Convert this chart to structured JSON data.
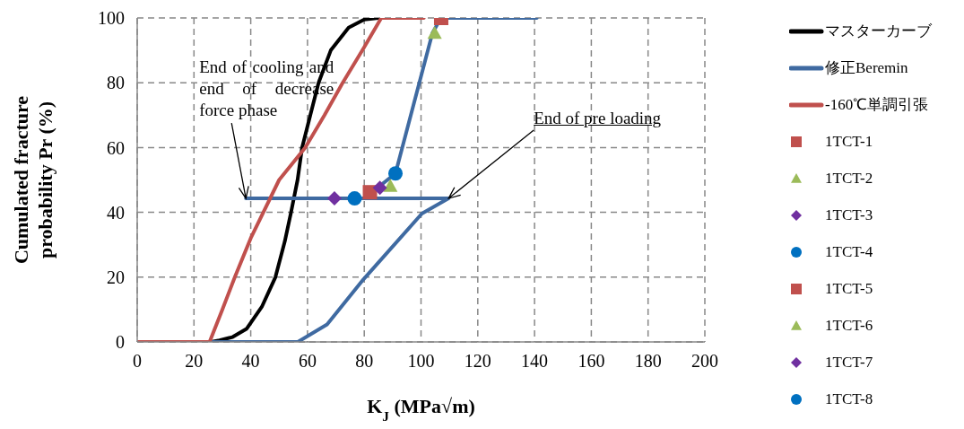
{
  "chart_data": {
    "type": "line",
    "xlabel": "K$_{J}$ (MPa√m)",
    "ylabel": "Cumulated fracture\nprobability Pr (%)",
    "xlim": [
      0,
      200
    ],
    "xticks": [
      0,
      20,
      40,
      60,
      80,
      100,
      120,
      140,
      160,
      180,
      200
    ],
    "ylim": [
      0,
      100
    ],
    "yticks": [
      0,
      20,
      40,
      60,
      80,
      100
    ],
    "grid": true,
    "legend": "right",
    "line_style": "solid",
    "series": [
      {
        "name": "マスターカーブ",
        "type": "line",
        "color": "#000000",
        "marker": "none",
        "x": [
          0,
          26,
          29,
          33.6,
          38.6,
          44,
          48.7,
          52,
          54.2,
          56.5,
          58.1,
          61,
          63.9,
          68.2,
          74.5,
          80,
          85
        ],
        "values": [
          0,
          0,
          0.5,
          1.5,
          4.1,
          11,
          20,
          31,
          40,
          50,
          60,
          70,
          80,
          90,
          97,
          99.5,
          100
        ]
      },
      {
        "name": "修正Beremin",
        "type": "line",
        "color": "#3f6aa1",
        "marker": "none",
        "x": [
          0,
          56.6,
          66.9,
          79.7,
          100.3,
          109.7,
          38.3,
          80,
          91,
          104,
          107,
          140.8
        ],
        "values": [
          0,
          0,
          5.4,
          19.3,
          39.6,
          44.3,
          44.3,
          44.3,
          52,
          95.3,
          100,
          100
        ]
      },
      {
        "name": "-160℃単調引張",
        "type": "line",
        "color": "#c0504d",
        "marker": "none",
        "x": [
          0,
          25.5,
          30,
          34.4,
          40,
          50,
          59.2,
          66,
          72.4,
          80,
          86,
          101
        ],
        "values": [
          0,
          0,
          10,
          20,
          32,
          50,
          60,
          70,
          80,
          91,
          100,
          100
        ]
      },
      {
        "name": "1TCT-1",
        "type": "scatter",
        "color": "#c0504d",
        "marker": "square",
        "x": [
          82
        ],
        "values": [
          46.2
        ]
      },
      {
        "name": "1TCT-2",
        "type": "scatter",
        "color": "#9bbb59",
        "marker": "triangle",
        "x": [
          89.2
        ],
        "values": [
          48.1
        ]
      },
      {
        "name": "1TCT-3",
        "type": "scatter",
        "color": "#7030a0",
        "marker": "diamond",
        "x": [
          85.5
        ],
        "values": [
          47.6
        ]
      },
      {
        "name": "1TCT-4",
        "type": "scatter",
        "color": "#0070c0",
        "marker": "circle",
        "x": [
          76.6
        ],
        "values": [
          44.3
        ]
      },
      {
        "name": "1TCT-5",
        "type": "scatter",
        "color": "#c0504d",
        "marker": "square",
        "x": [
          107.1
        ],
        "values": [
          100
        ]
      },
      {
        "name": "1TCT-6",
        "type": "scatter",
        "color": "#9bbb59",
        "marker": "triangle",
        "x": [
          104.8
        ],
        "values": [
          95.3
        ]
      },
      {
        "name": "1TCT-7",
        "type": "scatter",
        "color": "#7030a0",
        "marker": "diamond",
        "x": [
          69.5
        ],
        "values": [
          44.3
        ]
      },
      {
        "name": "1TCT-8",
        "type": "scatter",
        "color": "#0070c0",
        "marker": "circle",
        "x": [
          91
        ],
        "values": [
          52
        ]
      }
    ],
    "annotations": [
      {
        "text": "End of cooling and end of decrease force phase",
        "x": 38.3,
        "y": 44.3
      },
      {
        "text": "End of pre loading",
        "x": 109.7,
        "y": 44.3
      }
    ]
  }
}
